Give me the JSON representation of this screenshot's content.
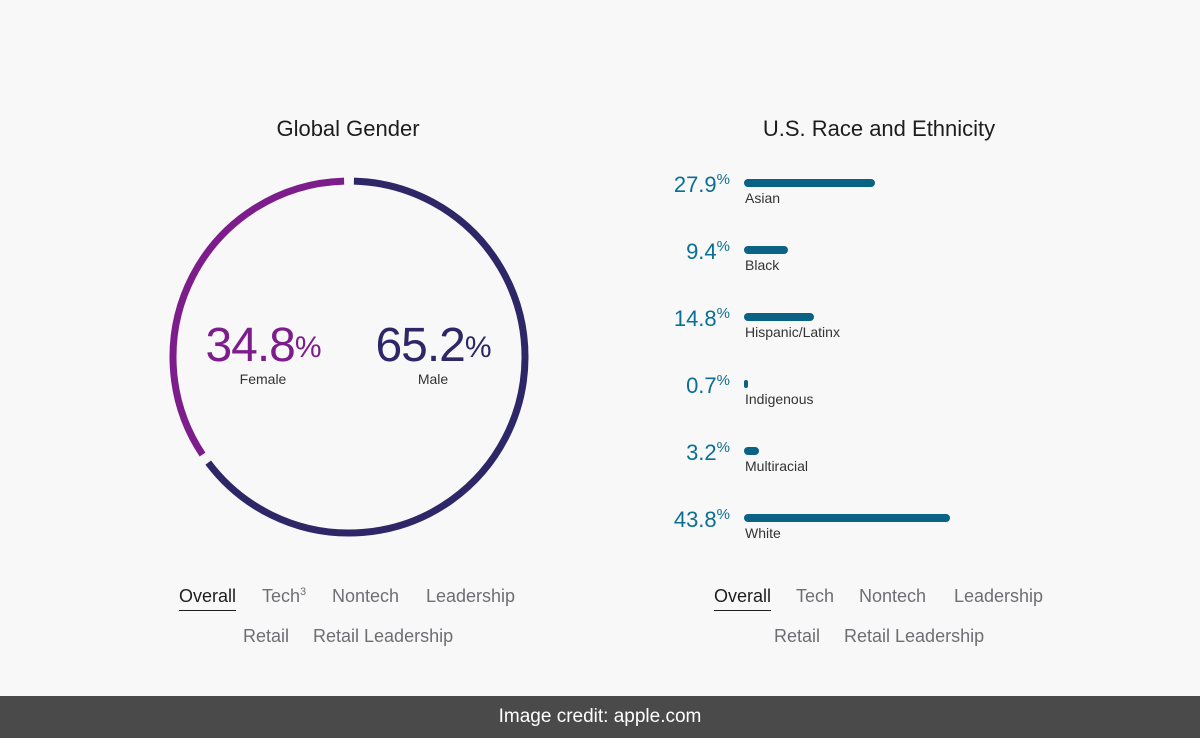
{
  "gender": {
    "title": "Global Gender",
    "female": {
      "value": "34.8",
      "pct": "%",
      "label": "Female"
    },
    "male": {
      "value": "65.2",
      "pct": "%",
      "label": "Male"
    },
    "colors": {
      "female": "#7d1d8c",
      "male": "#2e2767"
    },
    "tabs": [
      "Overall",
      "Tech",
      "Nontech",
      "Leadership",
      "Retail",
      "Retail Leadership"
    ],
    "tech_superscript": "3"
  },
  "race": {
    "title": "U.S. Race and Ethnicity",
    "tabs": [
      "Overall",
      "Tech",
      "Nontech",
      "Leadership",
      "Retail",
      "Retail Leadership"
    ],
    "bar_color": "#0a6285",
    "value_color": "#0a6f92"
  },
  "chart_data": [
    {
      "type": "pie",
      "title": "Global Gender",
      "categories": [
        "Female",
        "Male"
      ],
      "values": [
        34.8,
        65.2
      ]
    },
    {
      "type": "bar",
      "title": "U.S. Race and Ethnicity",
      "categories": [
        "Asian",
        "Black",
        "Hispanic/Latinx",
        "Indigenous",
        "Multiracial",
        "White"
      ],
      "values": [
        27.9,
        9.4,
        14.8,
        0.7,
        3.2,
        43.8
      ],
      "value_labels": [
        "27.9",
        "9.4",
        "14.8",
        "0.7",
        "3.2",
        "43.8"
      ],
      "unit": "%"
    }
  ],
  "footer": {
    "text": "Image credit: apple.com"
  }
}
